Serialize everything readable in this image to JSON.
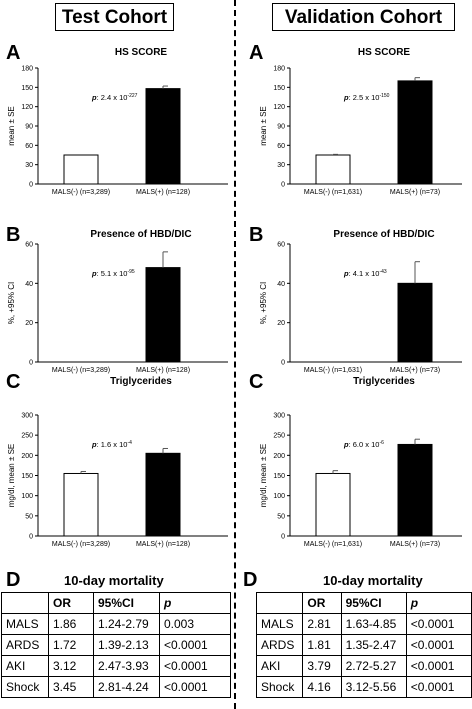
{
  "header": {
    "left_title": "Test Cohort",
    "right_title": "Validation Cohort"
  },
  "chart_data": [
    {
      "type": "bar",
      "letter": "A",
      "cohort": "Test Cohort",
      "title": "HS SCORE",
      "ylabel": "mean ± SE",
      "categories": [
        "MALS(-) (n=3,289)",
        "MALS(+) (n=128)"
      ],
      "values": [
        45,
        148
      ],
      "errors": [
        0,
        4
      ],
      "ylim": [
        0,
        180
      ],
      "yticks": [
        0,
        30,
        60,
        90,
        120,
        150,
        180
      ],
      "pvalue": {
        "prefix": "p",
        "base": ": 2.4 x 10",
        "exp": "-227"
      }
    },
    {
      "type": "bar",
      "letter": "B",
      "cohort": "Test Cohort",
      "title": "Presence of HBD/DIC",
      "ylabel": "%, +95% CI",
      "categories": [
        "MALS(-) (n=3,289)",
        "MALS(+) (n=128)"
      ],
      "values": [
        0,
        48
      ],
      "errors": [
        0,
        8
      ],
      "ylim": [
        0,
        60
      ],
      "yticks": [
        0,
        20,
        40,
        60
      ],
      "pvalue": {
        "prefix": "p",
        "base": ": 5.1 x 10",
        "exp": "-95"
      }
    },
    {
      "type": "bar",
      "letter": "C",
      "cohort": "Test Cohort",
      "title": "Triglycerides",
      "ylabel": "mg/dl, mean ± SE",
      "categories": [
        "MALS(-) (n=3,289)",
        "MALS(+) (n=128)"
      ],
      "values": [
        155,
        205
      ],
      "errors": [
        5,
        12
      ],
      "ylim": [
        0,
        300
      ],
      "yticks": [
        0,
        50,
        100,
        150,
        200,
        250,
        300
      ],
      "pvalue": {
        "prefix": "p",
        "base": ": 1.6 x 10",
        "exp": "-4"
      }
    },
    {
      "type": "bar",
      "letter": "A",
      "cohort": "Validation Cohort",
      "title": "HS SCORE",
      "ylabel": "mean ± SE",
      "categories": [
        "MALS(-) (n=1,631)",
        "MALS(+) (n=73)"
      ],
      "values": [
        45,
        160
      ],
      "errors": [
        1,
        5
      ],
      "ylim": [
        0,
        180
      ],
      "yticks": [
        0,
        30,
        60,
        90,
        120,
        150,
        180
      ],
      "pvalue": {
        "prefix": "p",
        "base": ": 2.5 x 10",
        "exp": "-150"
      }
    },
    {
      "type": "bar",
      "letter": "B",
      "cohort": "Validation Cohort",
      "title": "Presence of HBD/DIC",
      "ylabel": "%, +95% CI",
      "categories": [
        "MALS(-) (n=1,631)",
        "MALS(+) (n=73)"
      ],
      "values": [
        0,
        40
      ],
      "errors": [
        0,
        11
      ],
      "ylim": [
        0,
        60
      ],
      "yticks": [
        0,
        20,
        40,
        60
      ],
      "pvalue": {
        "prefix": "p",
        "base": ": 4.1 x 10",
        "exp": "-43"
      }
    },
    {
      "type": "bar",
      "letter": "C",
      "cohort": "Validation Cohort",
      "title": "Triglycerides",
      "ylabel": "mg/dl, mean ± SE",
      "categories": [
        "MALS(-) (n=1,631)",
        "MALS(+) (n=73)"
      ],
      "values": [
        155,
        227
      ],
      "errors": [
        7,
        13
      ],
      "ylim": [
        0,
        300
      ],
      "yticks": [
        0,
        50,
        100,
        150,
        200,
        250,
        300
      ],
      "pvalue": {
        "prefix": "p",
        "base": ": 6.0 x 10",
        "exp": "-6"
      }
    }
  ],
  "tables": [
    {
      "letter": "D",
      "title": "10-day mortality",
      "headers": [
        "",
        "OR",
        "95%CI",
        "p"
      ],
      "rows": [
        [
          "MALS",
          "1.86",
          "1.24-2.79",
          "0.003"
        ],
        [
          "ARDS",
          "1.72",
          "1.39-2.13",
          "<0.0001"
        ],
        [
          "AKI",
          "3.12",
          "2.47-3.93",
          "<0.0001"
        ],
        [
          "Shock",
          "3.45",
          "2.81-4.24",
          "<0.0001"
        ]
      ]
    },
    {
      "letter": "D",
      "title": "10-day mortality",
      "headers": [
        "",
        "OR",
        "95%CI",
        "p"
      ],
      "rows": [
        [
          "MALS",
          "2.81",
          "1.63-4.85",
          "<0.0001"
        ],
        [
          "ARDS",
          "1.81",
          "1.35-2.47",
          "<0.0001"
        ],
        [
          "AKI",
          "3.79",
          "2.72-5.27",
          "<0.0001"
        ],
        [
          "Shock",
          "4.16",
          "3.12-5.56",
          "<0.0001"
        ]
      ]
    }
  ],
  "colors": {
    "mals_negative": "#ffffff",
    "mals_positive": "#000000",
    "axis": "#000000"
  }
}
